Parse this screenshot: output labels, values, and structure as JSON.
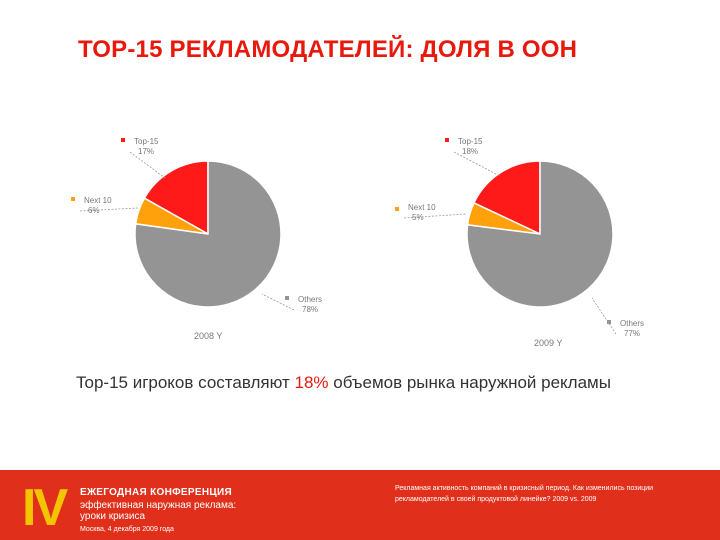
{
  "title": "ТОР-15 РЕКЛАМОДАТЕЛЕЙ: ДОЛЯ В ООН",
  "chart_data": [
    {
      "type": "pie",
      "title": "2008 Y",
      "slices": [
        {
          "label": "Top-15",
          "value": 17,
          "display": "17%",
          "color": "#ff1a1a"
        },
        {
          "label": "Next 10",
          "value": 6,
          "display": "6%",
          "color": "#ffa10a"
        },
        {
          "label": "Others",
          "value": 78,
          "display": "78%",
          "color": "#949494"
        }
      ]
    },
    {
      "type": "pie",
      "title": "2009 Y",
      "slices": [
        {
          "label": "Top-15",
          "value": 18,
          "display": "18%",
          "color": "#ff1a1a"
        },
        {
          "label": "Next 10",
          "value": 5,
          "display": "5%",
          "color": "#ffa10a"
        },
        {
          "label": "Others",
          "value": 77,
          "display": "77%",
          "color": "#949494"
        }
      ]
    }
  ],
  "caption": {
    "before": "Top-15 игроков составляют ",
    "highlight": "18%",
    "after": " объемов рынка наружной рекламы"
  },
  "footer": {
    "roman": "IV",
    "conference_line1": "ЕЖЕГОДНАЯ КОНФЕРЕНЦИЯ",
    "conference_line2": "эффективная наружная реклама:",
    "conference_line3": "уроки кризиса",
    "date_line": "Москва, 4 декабря 2009 года",
    "note": "Рекламная активность компаний в кризисный период. Как изменились позиции рекламодателей в своей продуктовой линейке? 2009 vs. 2009"
  }
}
